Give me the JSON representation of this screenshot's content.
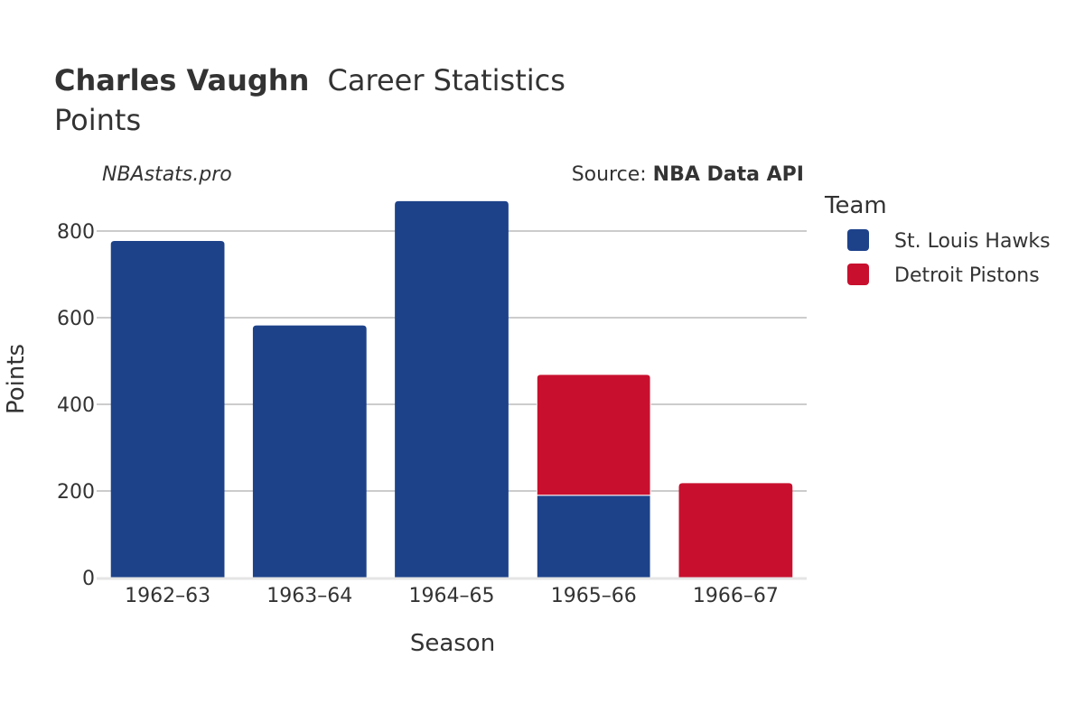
{
  "header": {
    "title_bold": "Charles Vaughn",
    "title_rest": "Career Statistics",
    "subtitle": "Points"
  },
  "watermark": "NBAstats.pro",
  "source": {
    "prefix": "Source: ",
    "name": "NBA Data API"
  },
  "legend": {
    "title": "Team",
    "placement": "right"
  },
  "colors": {
    "hawks": "#1d428a",
    "pistons": "#c8102e",
    "grid": "#999999",
    "baseline": "#e5e5e5",
    "text": "#333333"
  },
  "chart_data": {
    "type": "bar",
    "stacked": true,
    "title": "Charles Vaughn Career Statistics",
    "subtitle": "Points",
    "xlabel": "Season",
    "ylabel": "Points",
    "ylim": [
      0,
      900
    ],
    "yticks": [
      0,
      200,
      400,
      600,
      800
    ],
    "grid": true,
    "categories": [
      "1962–63",
      "1963–64",
      "1964–65",
      "1965–66",
      "1966–67"
    ],
    "series": [
      {
        "name": "St. Louis Hawks",
        "color": "#1d428a",
        "values": [
          777,
          582,
          869,
          190,
          0
        ]
      },
      {
        "name": "Detroit Pistons",
        "color": "#c8102e",
        "values": [
          0,
          0,
          0,
          279,
          218
        ]
      }
    ]
  }
}
